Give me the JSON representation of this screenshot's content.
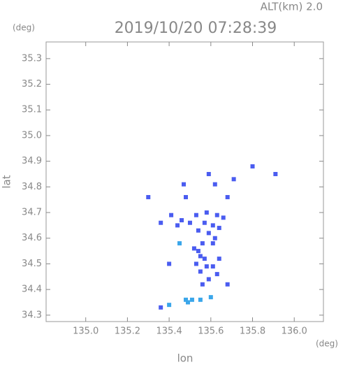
{
  "chart_data": {
    "type": "scatter",
    "title": "2019/10/20 07:28:39",
    "subtitle": "ALT(km) 2.0",
    "x_label": "lon",
    "y_label": "lat",
    "x_unit": "(deg)",
    "y_unit": "(deg)",
    "xlim": [
      134.81,
      136.14
    ],
    "ylim": [
      34.275,
      35.365
    ],
    "xticks": [
      {
        "value": 135.0,
        "label": "135.0"
      },
      {
        "value": 135.2,
        "label": "135.2"
      },
      {
        "value": 135.4,
        "label": "135.4"
      },
      {
        "value": 135.6,
        "label": "135.6"
      },
      {
        "value": 135.8,
        "label": "135.8"
      },
      {
        "value": 136.0,
        "label": "136.0"
      }
    ],
    "yticks": [
      {
        "value": 34.3,
        "label": "34.3"
      },
      {
        "value": 34.4,
        "label": "34.4"
      },
      {
        "value": 34.5,
        "label": "34.5"
      },
      {
        "value": 34.6,
        "label": "34.6"
      },
      {
        "value": 34.7,
        "label": "34.7"
      },
      {
        "value": 34.8,
        "label": "34.8"
      },
      {
        "value": 34.9,
        "label": "34.9"
      },
      {
        "value": 35.0,
        "label": "35.0"
      },
      {
        "value": 35.1,
        "label": "35.1"
      },
      {
        "value": 35.2,
        "label": "35.2"
      },
      {
        "value": 35.3,
        "label": "35.3"
      }
    ],
    "grid": false,
    "series": [
      {
        "color": "#4a5cf0",
        "x": [
          135.59,
          135.8,
          135.91,
          135.71,
          135.62,
          135.47,
          135.3,
          135.48,
          135.68,
          135.63,
          135.66,
          135.58,
          135.53,
          135.41,
          135.36,
          135.44,
          135.46,
          135.5,
          135.57,
          135.61,
          135.64,
          135.54,
          135.59,
          135.62,
          135.56,
          135.52,
          135.61,
          135.54,
          135.55,
          135.57,
          135.53,
          135.58,
          135.55,
          135.61,
          135.64,
          135.4,
          135.63,
          135.59,
          135.68,
          135.56,
          135.36
        ],
        "values": [
          34.85,
          34.88,
          34.85,
          34.83,
          34.81,
          34.81,
          34.76,
          34.76,
          34.76,
          34.69,
          34.68,
          34.7,
          34.69,
          34.69,
          34.66,
          34.65,
          34.67,
          34.66,
          34.66,
          34.65,
          34.64,
          34.63,
          34.62,
          34.6,
          34.58,
          34.56,
          34.58,
          34.55,
          34.53,
          34.52,
          34.5,
          34.49,
          34.47,
          34.49,
          34.52,
          34.5,
          34.46,
          34.44,
          34.42,
          34.42,
          34.33
        ]
      },
      {
        "color": "#3aa6ea",
        "x": [
          135.45,
          135.4,
          135.48,
          135.51,
          135.55,
          135.6,
          135.49
        ],
        "values": [
          34.58,
          34.34,
          34.36,
          34.36,
          34.36,
          34.37,
          34.35
        ]
      }
    ]
  }
}
